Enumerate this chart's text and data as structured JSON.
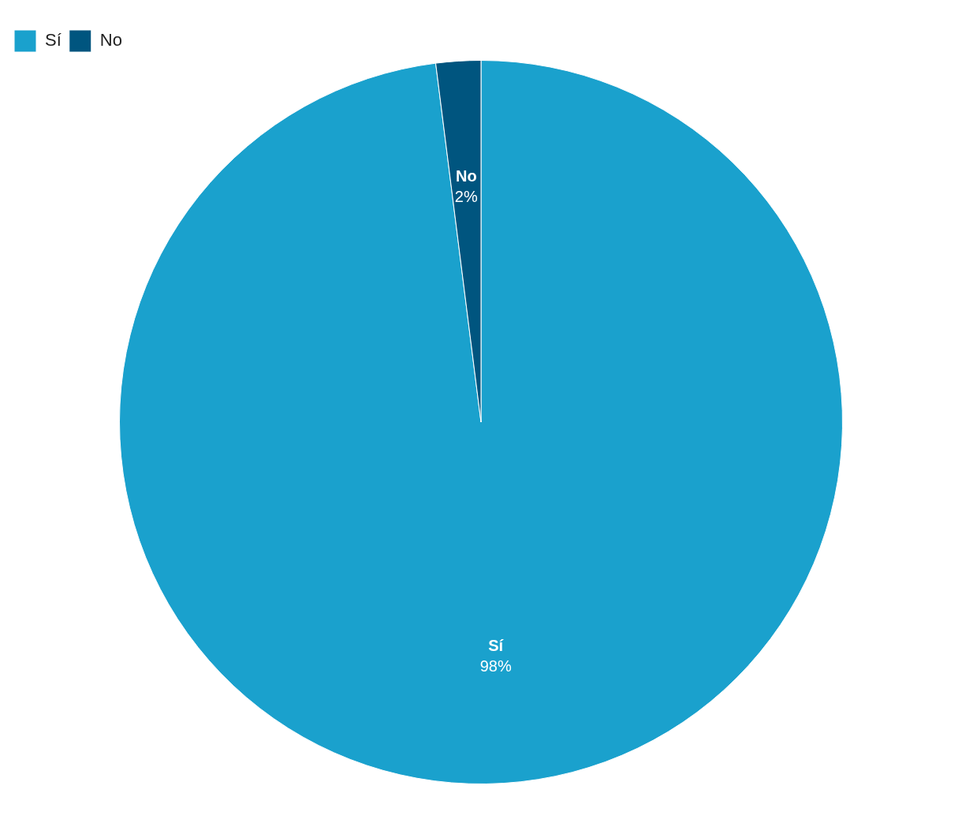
{
  "chart_data": {
    "type": "pie",
    "categories": [
      "Sí",
      "No"
    ],
    "values": [
      98,
      2
    ],
    "value_labels": [
      "98%",
      "2%"
    ],
    "colors": [
      "#1aa1cd",
      "#00557f"
    ],
    "legend": "top left"
  }
}
